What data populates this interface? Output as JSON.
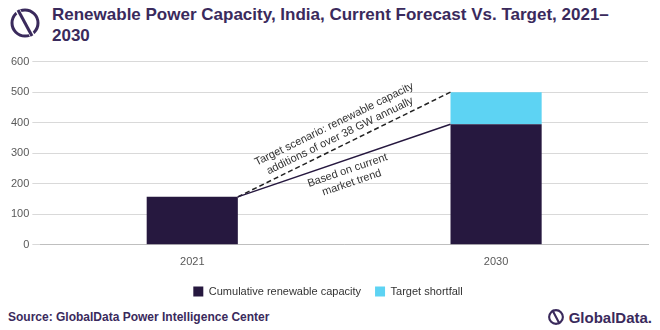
{
  "chart_data": {
    "type": "bar",
    "title": "Renewable Power Capacity, India, Current Forecast Vs. Target, 2021–2030",
    "categories": [
      "2021",
      "2030"
    ],
    "series": [
      {
        "name": "Cumulative renewable capacity",
        "color": "#26183f",
        "values": [
          157,
          395
        ]
      },
      {
        "name": "Target shortfall",
        "color": "#5dd3f3",
        "values": [
          null,
          105
        ]
      }
    ],
    "stacked": true,
    "ylim": [
      0,
      600
    ],
    "yticks": [
      0,
      100,
      200,
      300,
      400,
      500,
      600
    ],
    "grid": true,
    "legend": "bottom",
    "annotations": [
      {
        "text": "Target scenario: renewable capacity\nadditions of over 38 GW annually",
        "line_style": "dashed"
      },
      {
        "text": "Based on current\nmarket trend",
        "line_style": "solid"
      }
    ],
    "source": "Source: GlobalData Power Intelligence Center",
    "brand": "GlobalData."
  }
}
